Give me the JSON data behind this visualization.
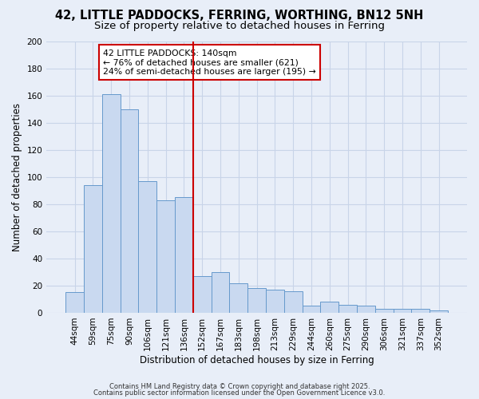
{
  "title1": "42, LITTLE PADDOCKS, FERRING, WORTHING, BN12 5NH",
  "title2": "Size of property relative to detached houses in Ferring",
  "xlabel": "Distribution of detached houses by size in Ferring",
  "ylabel": "Number of detached properties",
  "bar_labels": [
    "44sqm",
    "59sqm",
    "75sqm",
    "90sqm",
    "106sqm",
    "121sqm",
    "136sqm",
    "152sqm",
    "167sqm",
    "183sqm",
    "198sqm",
    "213sqm",
    "229sqm",
    "244sqm",
    "260sqm",
    "275sqm",
    "290sqm",
    "306sqm",
    "321sqm",
    "337sqm",
    "352sqm"
  ],
  "bar_values": [
    15,
    94,
    161,
    150,
    97,
    83,
    85,
    27,
    30,
    22,
    18,
    17,
    16,
    5,
    8,
    6,
    5,
    3,
    3,
    3,
    2
  ],
  "bar_color": "#c9d9f0",
  "bar_edge_color": "#6699cc",
  "vline_color": "#cc0000",
  "vline_x": 6.5,
  "annotation_title": "42 LITTLE PADDOCKS: 140sqm",
  "annotation_line1": "← 76% of detached houses are smaller (621)",
  "annotation_line2": "24% of semi-detached houses are larger (195) →",
  "annotation_box_color": "#ffffff",
  "annotation_box_edge": "#cc0000",
  "ylim": [
    0,
    200
  ],
  "yticks": [
    0,
    20,
    40,
    60,
    80,
    100,
    120,
    140,
    160,
    180,
    200
  ],
  "bg_color": "#e8eef8",
  "grid_color": "#c8d4e8",
  "footer1": "Contains HM Land Registry data © Crown copyright and database right 2025.",
  "footer2": "Contains public sector information licensed under the Open Government Licence v3.0.",
  "title_fontsize": 10.5,
  "subtitle_fontsize": 9.5,
  "axis_label_fontsize": 8.5,
  "tick_fontsize": 7.5,
  "annotation_fontsize": 7.8,
  "footer_fontsize": 6.0
}
